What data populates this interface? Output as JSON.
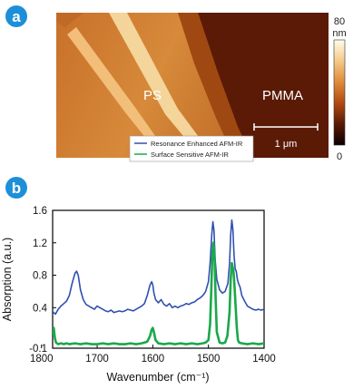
{
  "panel_a": {
    "badge": "a",
    "label_ps": "PS",
    "label_pmma": "PMMA",
    "scalebar_label": "1 μm",
    "colorbar": {
      "max_label": "80",
      "unit_label": "nm",
      "min_label": "0",
      "colors": [
        "#fffde8",
        "#f4c98a",
        "#e08a3a",
        "#b24a12",
        "#5a1a04",
        "#0a0000"
      ]
    }
  },
  "panel_b": {
    "badge": "b"
  },
  "chart_data": {
    "type": "line",
    "xlabel": "Wavenumber (cm⁻¹)",
    "ylabel": "Absorption (a.u.)",
    "xlim": [
      1780,
      1400
    ],
    "ylim": [
      -0.1,
      1.6
    ],
    "x_reversed": true,
    "xticks": [
      1800,
      1700,
      1600,
      1500,
      1400
    ],
    "yticks": [
      -0.1,
      0.4,
      0.8,
      1.2,
      1.6
    ],
    "ytick_labels": [
      "-0.1",
      "0.4",
      "0.8",
      "1.2",
      "1.6"
    ],
    "legend_position": "top-left",
    "series": [
      {
        "name": "Resonance Enhanced AFM-IR",
        "color": "#3050b0",
        "x": [
          1780,
          1775,
          1770,
          1765,
          1760,
          1755,
          1750,
          1745,
          1740,
          1737,
          1734,
          1730,
          1725,
          1720,
          1715,
          1710,
          1705,
          1700,
          1695,
          1690,
          1685,
          1680,
          1675,
          1670,
          1665,
          1660,
          1655,
          1650,
          1645,
          1640,
          1635,
          1630,
          1625,
          1620,
          1615,
          1610,
          1605,
          1602,
          1600,
          1598,
          1595,
          1590,
          1585,
          1580,
          1575,
          1570,
          1565,
          1560,
          1555,
          1550,
          1545,
          1540,
          1535,
          1530,
          1525,
          1520,
          1515,
          1510,
          1505,
          1500,
          1497,
          1494,
          1492,
          1490,
          1488,
          1485,
          1480,
          1475,
          1470,
          1465,
          1462,
          1460,
          1458,
          1456,
          1454,
          1452,
          1450,
          1448,
          1446,
          1443,
          1440,
          1435,
          1430,
          1425,
          1420,
          1415,
          1410,
          1405,
          1400
        ],
        "y": [
          0.35,
          0.32,
          0.38,
          0.42,
          0.45,
          0.48,
          0.55,
          0.7,
          0.82,
          0.85,
          0.8,
          0.62,
          0.5,
          0.44,
          0.42,
          0.4,
          0.38,
          0.42,
          0.4,
          0.38,
          0.36,
          0.35,
          0.37,
          0.34,
          0.35,
          0.36,
          0.35,
          0.36,
          0.38,
          0.37,
          0.36,
          0.38,
          0.4,
          0.42,
          0.45,
          0.55,
          0.68,
          0.72,
          0.68,
          0.58,
          0.5,
          0.46,
          0.5,
          0.44,
          0.42,
          0.45,
          0.4,
          0.42,
          0.4,
          0.42,
          0.43,
          0.45,
          0.44,
          0.46,
          0.47,
          0.5,
          0.52,
          0.55,
          0.6,
          0.72,
          0.95,
          1.3,
          1.46,
          1.35,
          1.0,
          0.75,
          0.62,
          0.58,
          0.6,
          0.7,
          0.95,
          1.3,
          1.48,
          1.36,
          1.05,
          0.88,
          0.85,
          0.75,
          0.7,
          0.65,
          0.55,
          0.48,
          0.42,
          0.4,
          0.38,
          0.37,
          0.38,
          0.37,
          0.38
        ]
      },
      {
        "name": "Surface Sensitive AFM-IR",
        "color": "#1aa84a",
        "x": [
          1780,
          1778,
          1776,
          1774,
          1770,
          1765,
          1760,
          1755,
          1750,
          1740,
          1730,
          1720,
          1710,
          1700,
          1690,
          1680,
          1670,
          1660,
          1650,
          1640,
          1630,
          1620,
          1610,
          1605,
          1602,
          1600,
          1598,
          1595,
          1590,
          1580,
          1570,
          1560,
          1550,
          1540,
          1530,
          1520,
          1510,
          1505,
          1500,
          1497,
          1495,
          1493,
          1491,
          1489,
          1487,
          1485,
          1480,
          1475,
          1470,
          1466,
          1462,
          1460,
          1458,
          1455,
          1453,
          1451,
          1449,
          1447,
          1445,
          1440,
          1430,
          1420,
          1410,
          1400
        ],
        "y": [
          0.05,
          0.15,
          0.03,
          -0.03,
          -0.05,
          -0.04,
          -0.05,
          -0.04,
          -0.05,
          -0.04,
          -0.05,
          -0.04,
          -0.05,
          -0.05,
          -0.04,
          -0.05,
          -0.04,
          -0.05,
          -0.05,
          -0.04,
          -0.05,
          -0.04,
          -0.02,
          0.05,
          0.13,
          0.15,
          0.1,
          0.0,
          -0.04,
          -0.05,
          -0.04,
          -0.05,
          -0.04,
          -0.05,
          -0.04,
          -0.05,
          -0.04,
          -0.03,
          0.0,
          0.2,
          0.6,
          1.05,
          1.2,
          1.0,
          0.5,
          0.1,
          -0.03,
          -0.04,
          -0.03,
          0.05,
          0.35,
          0.75,
          0.95,
          0.85,
          0.65,
          0.4,
          0.15,
          0.0,
          -0.03,
          -0.04,
          -0.05,
          -0.04,
          -0.05,
          -0.04
        ]
      }
    ]
  }
}
